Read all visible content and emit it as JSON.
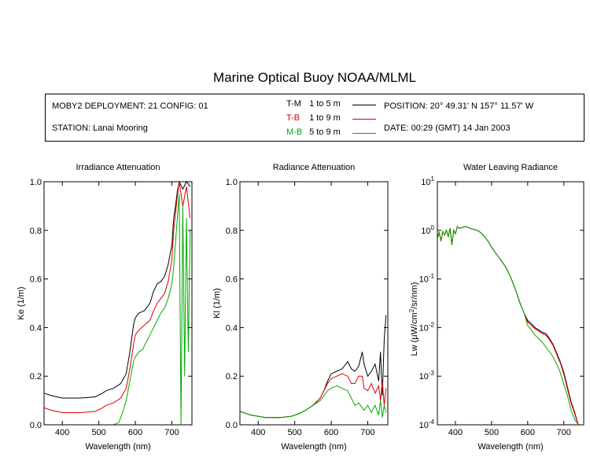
{
  "title": "Marine Optical Buoy NOAA/MLML",
  "info": {
    "deployment": "MOBY2 DEPLOYMENT: 21 CONFIG: 01",
    "station": "STATION: Lanai Mooring",
    "position": "POSITION: 20° 49.31' N   157° 11.57' W",
    "date": "DATE: 00:29 (GMT) 14 Jan 2003"
  },
  "legend": [
    {
      "code": "T-M",
      "range": "1 to 5   m",
      "color": "#000000"
    },
    {
      "code": "T-B",
      "range": "1 to 9   m",
      "color": "#dd0000"
    },
    {
      "code": "M-B",
      "range": "5 to 9   m",
      "color": "#00aa00"
    }
  ],
  "chart_data": [
    {
      "type": "line",
      "title": "Irradiance Attenuation",
      "xlabel": "Wavelength (nm)",
      "ylabel": "Ke  (1/m)",
      "xlim": [
        350,
        755
      ],
      "ylim": [
        0,
        1
      ],
      "xticks": [
        400,
        500,
        600,
        700
      ],
      "yticks": [
        "0.0",
        "0.2",
        "0.4",
        "0.6",
        "0.8",
        "1.0"
      ],
      "yticks_values": [
        0,
        0.2,
        0.4,
        0.6,
        0.8,
        1.0
      ],
      "series": [
        {
          "name": "T-M",
          "color": "#000000",
          "x": [
            350,
            370,
            400,
            450,
            490,
            510,
            520,
            540,
            560,
            575,
            585,
            595,
            600,
            610,
            625,
            640,
            650,
            660,
            670,
            680,
            690,
            700,
            705,
            710,
            715,
            720,
            730,
            740,
            750
          ],
          "y": [
            0.13,
            0.12,
            0.11,
            0.11,
            0.115,
            0.13,
            0.14,
            0.15,
            0.17,
            0.21,
            0.3,
            0.41,
            0.44,
            0.46,
            0.47,
            0.5,
            0.55,
            0.58,
            0.59,
            0.61,
            0.66,
            0.74,
            0.85,
            0.9,
            0.96,
            1.0,
            0.97,
            1.0,
            0.98
          ]
        },
        {
          "name": "T-B",
          "color": "#dd0000",
          "x": [
            350,
            370,
            400,
            450,
            490,
            510,
            520,
            540,
            560,
            575,
            585,
            595,
            600,
            610,
            625,
            640,
            650,
            660,
            670,
            680,
            690,
            700,
            705,
            710,
            715,
            720,
            730,
            740,
            750
          ],
          "y": [
            0.07,
            0.06,
            0.05,
            0.05,
            0.055,
            0.07,
            0.08,
            0.09,
            0.11,
            0.15,
            0.23,
            0.33,
            0.37,
            0.39,
            0.41,
            0.43,
            0.47,
            0.5,
            0.52,
            0.54,
            0.59,
            0.68,
            0.8,
            0.87,
            0.94,
            1.0,
            0.9,
            0.98,
            0.85
          ]
        },
        {
          "name": "M-B",
          "color": "#00aa00",
          "x": [
            350,
            400,
            450,
            500,
            520,
            540,
            555,
            565,
            575,
            585,
            595,
            600,
            610,
            620,
            630,
            640,
            650,
            660,
            670,
            680,
            690,
            700,
            705,
            710,
            715,
            720,
            725,
            730,
            735,
            740,
            745,
            750
          ],
          "y": [
            0.0,
            0.0,
            0.0,
            0.0,
            0.0,
            0.0,
            0.01,
            0.05,
            0.1,
            0.18,
            0.26,
            0.28,
            0.3,
            0.31,
            0.34,
            0.37,
            0.4,
            0.43,
            0.46,
            0.48,
            0.52,
            0.58,
            0.65,
            0.75,
            0.85,
            0.95,
            0.0,
            0.9,
            0.2,
            0.85,
            0.3,
            0.8
          ]
        }
      ]
    },
    {
      "type": "line",
      "title": "Radiance Attenuation",
      "xlabel": "Wavelength (nm)",
      "ylabel": "Kl  (1/m)",
      "xlim": [
        350,
        755
      ],
      "ylim": [
        0,
        1
      ],
      "xticks": [
        400,
        500,
        600,
        700
      ],
      "yticks": [
        "0.0",
        "0.2",
        "0.4",
        "0.6",
        "0.8",
        "1.0"
      ],
      "yticks_values": [
        0,
        0.2,
        0.4,
        0.6,
        0.8,
        1.0
      ],
      "series": [
        {
          "name": "T-M",
          "color": "#000000",
          "x": [
            350,
            380,
            420,
            460,
            490,
            510,
            530,
            550,
            570,
            580,
            590,
            600,
            615,
            630,
            645,
            655,
            665,
            675,
            685,
            690,
            700,
            710,
            720,
            730,
            735,
            740,
            745,
            750
          ],
          "y": [
            0.055,
            0.04,
            0.03,
            0.03,
            0.035,
            0.045,
            0.06,
            0.08,
            0.11,
            0.14,
            0.18,
            0.21,
            0.22,
            0.23,
            0.26,
            0.23,
            0.22,
            0.24,
            0.3,
            0.25,
            0.2,
            0.22,
            0.25,
            0.18,
            0.3,
            0.12,
            0.35,
            0.45
          ]
        },
        {
          "name": "T-B",
          "color": "#dd0000",
          "x": [
            350,
            380,
            420,
            460,
            490,
            510,
            530,
            550,
            570,
            580,
            590,
            600,
            615,
            630,
            645,
            655,
            665,
            675,
            685,
            690,
            700,
            710,
            720,
            730,
            735,
            740,
            745,
            750
          ],
          "y": [
            0.055,
            0.04,
            0.03,
            0.03,
            0.035,
            0.045,
            0.06,
            0.08,
            0.11,
            0.14,
            0.17,
            0.19,
            0.2,
            0.21,
            0.2,
            0.17,
            0.17,
            0.2,
            0.2,
            0.15,
            0.14,
            0.17,
            0.13,
            0.16,
            0.1,
            0.18,
            0.08,
            0.15
          ]
        },
        {
          "name": "M-B",
          "color": "#00aa00",
          "x": [
            350,
            380,
            420,
            460,
            490,
            510,
            530,
            550,
            570,
            580,
            590,
            600,
            615,
            630,
            645,
            655,
            665,
            675,
            685,
            690,
            700,
            710,
            720,
            730,
            735,
            740,
            745,
            750
          ],
          "y": [
            0.055,
            0.04,
            0.03,
            0.03,
            0.035,
            0.045,
            0.06,
            0.08,
            0.1,
            0.12,
            0.14,
            0.15,
            0.16,
            0.15,
            0.14,
            0.11,
            0.08,
            0.09,
            0.07,
            0.06,
            0.08,
            0.05,
            0.08,
            0.04,
            0.1,
            0.03,
            0.08,
            0.05
          ]
        }
      ]
    },
    {
      "type": "line",
      "title": "Water Leaving Radiance",
      "xlabel": "Wavelength (nm)",
      "ylabel": "Lw  (μW/cm²/sr/nm)",
      "ylabel_main": "Lw  (μW/cm",
      "ylabel_sup": "2",
      "ylabel_end": "/sr/nm)",
      "yscale": "log",
      "xlim": [
        350,
        755
      ],
      "ylim": [
        0.0001,
        10
      ],
      "xticks": [
        400,
        500,
        600,
        700
      ],
      "yticks_base": "10",
      "yticks_exp": [
        "-4",
        "-3",
        "-2",
        "-1",
        "0",
        "1"
      ],
      "yticks_values": [
        0.0001,
        0.001,
        0.01,
        0.1,
        1,
        10
      ],
      "series": [
        {
          "name": "T-M",
          "color": "#000000",
          "x": [
            350,
            355,
            360,
            365,
            370,
            375,
            380,
            385,
            390,
            395,
            400,
            405,
            410,
            420,
            430,
            440,
            450,
            460,
            470,
            480,
            490,
            500,
            510,
            520,
            530,
            540,
            550,
            560,
            570,
            580,
            590,
            600,
            610,
            620,
            630,
            640,
            650,
            660,
            670,
            680,
            690,
            700,
            710,
            720,
            730,
            740,
            750
          ],
          "y": [
            0.7,
            0.9,
            0.6,
            0.95,
            0.8,
            1.0,
            0.75,
            1.1,
            0.5,
            1.0,
            0.85,
            1.2,
            1.1,
            1.15,
            1.2,
            1.1,
            1.05,
            1.0,
            0.9,
            0.75,
            0.6,
            0.45,
            0.35,
            0.28,
            0.22,
            0.17,
            0.12,
            0.08,
            0.05,
            0.03,
            0.02,
            0.014,
            0.012,
            0.01,
            0.009,
            0.008,
            0.0075,
            0.006,
            0.0045,
            0.003,
            0.002,
            0.0012,
            0.0006,
            0.0003,
            0.00018,
            0.0001,
            0.0001
          ]
        },
        {
          "name": "T-B",
          "color": "#dd0000",
          "x": [
            350,
            355,
            360,
            365,
            370,
            375,
            380,
            385,
            390,
            395,
            400,
            405,
            410,
            420,
            430,
            440,
            450,
            460,
            470,
            480,
            490,
            500,
            510,
            520,
            530,
            540,
            550,
            560,
            570,
            580,
            590,
            600,
            610,
            620,
            630,
            640,
            650,
            660,
            670,
            680,
            690,
            700,
            710,
            720,
            730,
            740,
            750
          ],
          "y": [
            0.7,
            0.9,
            0.6,
            0.95,
            0.8,
            1.0,
            0.75,
            1.1,
            0.5,
            1.0,
            0.85,
            1.2,
            1.1,
            1.15,
            1.2,
            1.1,
            1.05,
            1.0,
            0.9,
            0.75,
            0.6,
            0.45,
            0.35,
            0.28,
            0.22,
            0.17,
            0.12,
            0.08,
            0.05,
            0.03,
            0.02,
            0.013,
            0.011,
            0.0095,
            0.0085,
            0.0075,
            0.007,
            0.0057,
            0.0043,
            0.0028,
            0.0019,
            0.0011,
            0.00055,
            0.00028,
            0.00017,
            0.0001,
            0.0001
          ]
        },
        {
          "name": "M-B",
          "color": "#00aa00",
          "x": [
            350,
            355,
            360,
            365,
            370,
            375,
            380,
            385,
            390,
            395,
            400,
            405,
            410,
            420,
            430,
            440,
            450,
            460,
            470,
            480,
            490,
            500,
            510,
            520,
            530,
            540,
            550,
            560,
            570,
            580,
            590,
            600,
            610,
            620,
            630,
            640,
            650,
            660,
            670,
            680,
            690,
            700,
            710,
            720,
            730,
            740,
            750
          ],
          "y": [
            0.7,
            0.9,
            0.6,
            0.95,
            0.8,
            1.0,
            0.75,
            1.1,
            0.5,
            1.0,
            0.85,
            1.2,
            1.1,
            1.15,
            1.2,
            1.1,
            1.05,
            1.0,
            0.9,
            0.75,
            0.6,
            0.45,
            0.35,
            0.28,
            0.22,
            0.17,
            0.12,
            0.08,
            0.05,
            0.03,
            0.02,
            0.011,
            0.009,
            0.007,
            0.006,
            0.005,
            0.004,
            0.0032,
            0.0025,
            0.0018,
            0.0012,
            0.0007,
            0.0004,
            0.0002,
            0.00013,
            0.0001,
            0.0001
          ]
        }
      ]
    }
  ]
}
